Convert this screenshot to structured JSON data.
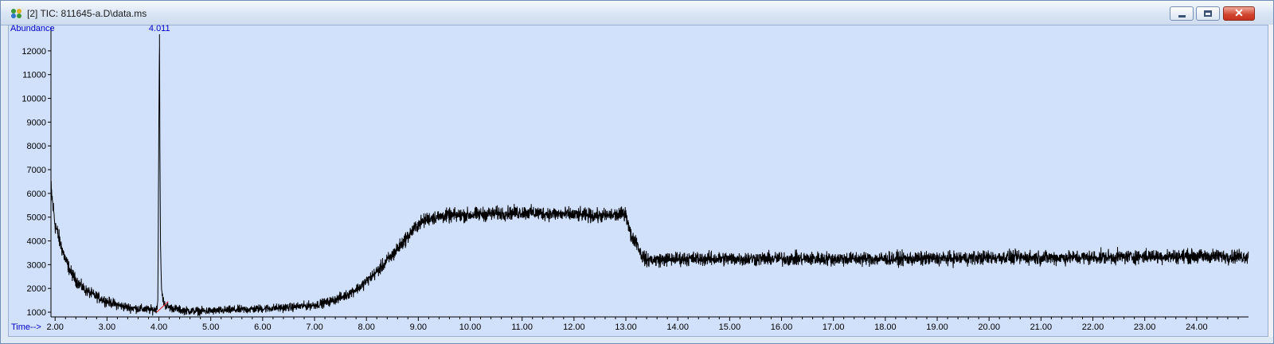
{
  "window": {
    "title": "[2] TIC: 811645-a.D\\data.ms",
    "icon": "chromatogram-app-icon",
    "buttons": {
      "minimize": "minimize-icon",
      "maximize": "maximize-icon",
      "close": "close-icon",
      "close_glyph": "✕"
    }
  },
  "colors": {
    "plot_background": "#d1e1fb",
    "trace": "#000000",
    "axis_titles": "#0000c8",
    "baseline_marker": "#e02020"
  },
  "chart_data": {
    "type": "line",
    "title": "TIC: 811645-a.D\\data.ms",
    "xlabel": "Time-->",
    "ylabel": "Abundance",
    "xlim": [
      1.92,
      25.0
    ],
    "ylim": [
      800,
      12800
    ],
    "x_tick_labels": [
      "2.00",
      "3.00",
      "4.00",
      "5.00",
      "6.00",
      "7.00",
      "8.00",
      "9.00",
      "10.00",
      "11.00",
      "12.00",
      "13.00",
      "14.00",
      "15.00",
      "16.00",
      "17.00",
      "18.00",
      "19.00",
      "20.00",
      "21.00",
      "22.00",
      "23.00",
      "24.00"
    ],
    "y_tick_labels": [
      "1000",
      "2000",
      "3000",
      "4000",
      "5000",
      "6000",
      "7000",
      "8000",
      "9000",
      "10000",
      "11000",
      "12000"
    ],
    "grid": false,
    "peaks": [
      {
        "label": "4.011",
        "x": 4.011,
        "y": 12700
      }
    ],
    "baseline_segment": {
      "x": [
        3.96,
        4.18
      ],
      "y": [
        1000,
        1450
      ]
    },
    "series": [
      {
        "x": [
          1.92,
          2.0,
          2.1,
          2.2,
          2.3,
          2.4,
          2.5,
          2.6,
          2.8,
          3.0,
          3.2,
          3.4,
          3.6,
          3.8,
          3.9,
          3.96,
          3.98,
          4.0,
          4.011,
          4.02,
          4.03,
          4.05,
          4.08,
          4.12,
          4.2,
          4.4,
          4.6,
          4.8,
          5.0,
          5.5,
          6.0,
          6.5,
          7.0,
          7.3,
          7.6,
          7.9,
          8.2,
          8.5,
          8.8,
          9.0,
          9.2,
          9.5,
          10.0,
          10.5,
          11.0,
          11.5,
          12.0,
          12.5,
          12.9,
          13.0,
          13.05,
          13.1,
          13.2,
          13.3,
          13.4,
          13.6,
          14.0,
          15.0,
          16.0,
          17.0,
          18.0,
          19.0,
          20.0,
          21.0,
          22.0,
          23.0,
          24.0,
          24.5,
          25.0
        ],
        "y": [
          6200,
          4700,
          3900,
          3200,
          2700,
          2350,
          2100,
          1900,
          1650,
          1450,
          1300,
          1200,
          1150,
          1100,
          1100,
          1150,
          1500,
          9000,
          12700,
          8000,
          4000,
          2000,
          1500,
          1300,
          1200,
          1100,
          1050,
          1050,
          1050,
          1100,
          1150,
          1200,
          1300,
          1450,
          1700,
          2100,
          2700,
          3400,
          4200,
          4700,
          4950,
          5050,
          5100,
          5150,
          5200,
          5150,
          5100,
          5050,
          5100,
          5200,
          4600,
          4200,
          4000,
          3400,
          3200,
          3200,
          3250,
          3250,
          3250,
          3250,
          3250,
          3250,
          3300,
          3300,
          3300,
          3350,
          3350,
          3350,
          3350
        ]
      }
    ]
  }
}
